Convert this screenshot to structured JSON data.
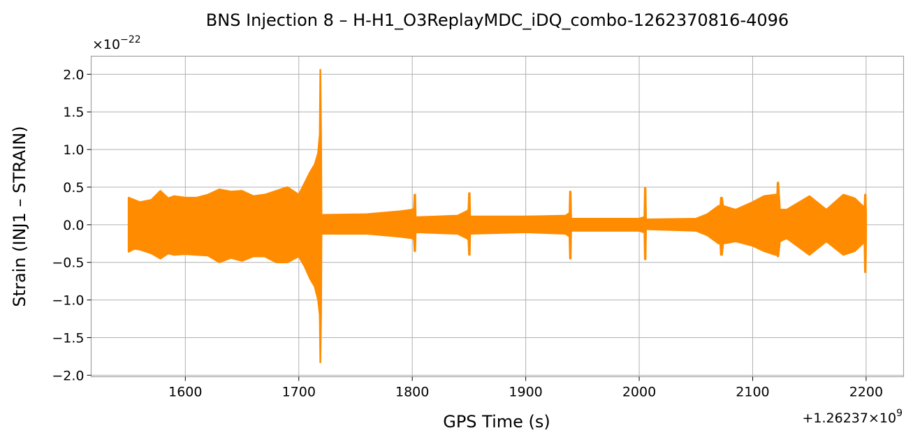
{
  "chart_data": {
    "type": "line",
    "title": "BNS Injection 8 – H-H1_O3ReplayMDC_iDQ_combo-1262370816-4096",
    "xlabel": "GPS Time (s)",
    "ylabel": "Strain (INJ1 – STRAIN)",
    "x_offset_label": "+1.26237×10",
    "x_offset_exp": "9",
    "y_scale_label": "×10",
    "y_scale_exp": "−22",
    "xlim": [
      1517,
      2233
    ],
    "ylim": [
      -2.02,
      2.24
    ],
    "xticks": [
      1600,
      1700,
      1800,
      1900,
      2000,
      2100,
      2200
    ],
    "xtick_labels": [
      "1600",
      "1700",
      "1800",
      "1900",
      "2000",
      "2100",
      "2200"
    ],
    "yticks": [
      2.0,
      1.5,
      1.0,
      0.5,
      0.0,
      -0.5,
      -1.0,
      -1.5,
      -2.0
    ],
    "ytick_labels": [
      "2.0",
      "1.5",
      "1.0",
      "0.5",
      "0.0",
      "−0.5",
      "−1.0",
      "−1.5",
      "−2.0"
    ],
    "grid": true,
    "color": "#ff8c00",
    "series": [
      {
        "envelope_t": [
          1550,
          1555,
          1560,
          1570,
          1578,
          1585,
          1590,
          1600,
          1610,
          1620,
          1630,
          1640,
          1650,
          1660,
          1670,
          1680,
          1690,
          1700,
          1705,
          1710,
          1714,
          1717,
          1718.5,
          1719,
          1719.6,
          1720,
          1760,
          1790,
          1800,
          1801.5,
          1802,
          1802.6,
          1803,
          1840,
          1848,
          1849.5,
          1850,
          1850.6,
          1851,
          1900,
          1935,
          1938,
          1938.6,
          1939,
          1939.6,
          1940,
          2000,
          2004,
          2004.6,
          2005,
          2005.6,
          2006,
          2050,
          2060,
          2070,
          2071.5,
          2072,
          2073,
          2074,
          2085,
          2100,
          2110,
          2120,
          2121.6,
          2122,
          2122.6,
          2124,
          2130,
          2150,
          2165,
          2180,
          2190,
          2197,
          2198.5,
          2199,
          2199.6,
          2200
        ],
        "upper": [
          0.36,
          0.33,
          0.3,
          0.33,
          0.45,
          0.35,
          0.38,
          0.36,
          0.36,
          0.4,
          0.47,
          0.44,
          0.45,
          0.38,
          0.4,
          0.45,
          0.5,
          0.4,
          0.55,
          0.7,
          0.8,
          0.95,
          1.2,
          2.06,
          1.2,
          0.13,
          0.14,
          0.18,
          0.2,
          0.22,
          0.4,
          0.4,
          0.1,
          0.12,
          0.18,
          0.2,
          0.42,
          0.42,
          0.11,
          0.11,
          0.12,
          0.15,
          0.15,
          0.44,
          0.44,
          0.08,
          0.08,
          0.1,
          0.1,
          0.49,
          0.49,
          0.07,
          0.08,
          0.14,
          0.25,
          0.25,
          0.36,
          0.36,
          0.25,
          0.2,
          0.3,
          0.38,
          0.4,
          0.4,
          0.56,
          0.56,
          0.2,
          0.2,
          0.38,
          0.2,
          0.4,
          0.35,
          0.25,
          0.2,
          0.4,
          0.4,
          0.14
        ],
        "lower": [
          -0.36,
          -0.32,
          -0.33,
          -0.38,
          -0.45,
          -0.38,
          -0.4,
          -0.39,
          -0.4,
          -0.41,
          -0.5,
          -0.44,
          -0.48,
          -0.42,
          -0.42,
          -0.5,
          -0.5,
          -0.42,
          -0.55,
          -0.72,
          -0.82,
          -1.0,
          -1.2,
          -1.83,
          -1.2,
          -0.12,
          -0.12,
          -0.16,
          -0.18,
          -0.2,
          -0.35,
          -0.35,
          -0.1,
          -0.12,
          -0.18,
          -0.2,
          -0.4,
          -0.4,
          -0.12,
          -0.1,
          -0.12,
          -0.15,
          -0.15,
          -0.45,
          -0.45,
          -0.08,
          -0.08,
          -0.1,
          -0.1,
          -0.46,
          -0.46,
          -0.06,
          -0.08,
          -0.14,
          -0.25,
          -0.25,
          -0.4,
          -0.4,
          -0.25,
          -0.22,
          -0.28,
          -0.35,
          -0.4,
          -0.4,
          -0.42,
          -0.42,
          -0.22,
          -0.18,
          -0.4,
          -0.22,
          -0.4,
          -0.35,
          -0.25,
          -0.18,
          -0.63,
          -0.63,
          -0.14
        ]
      }
    ]
  }
}
